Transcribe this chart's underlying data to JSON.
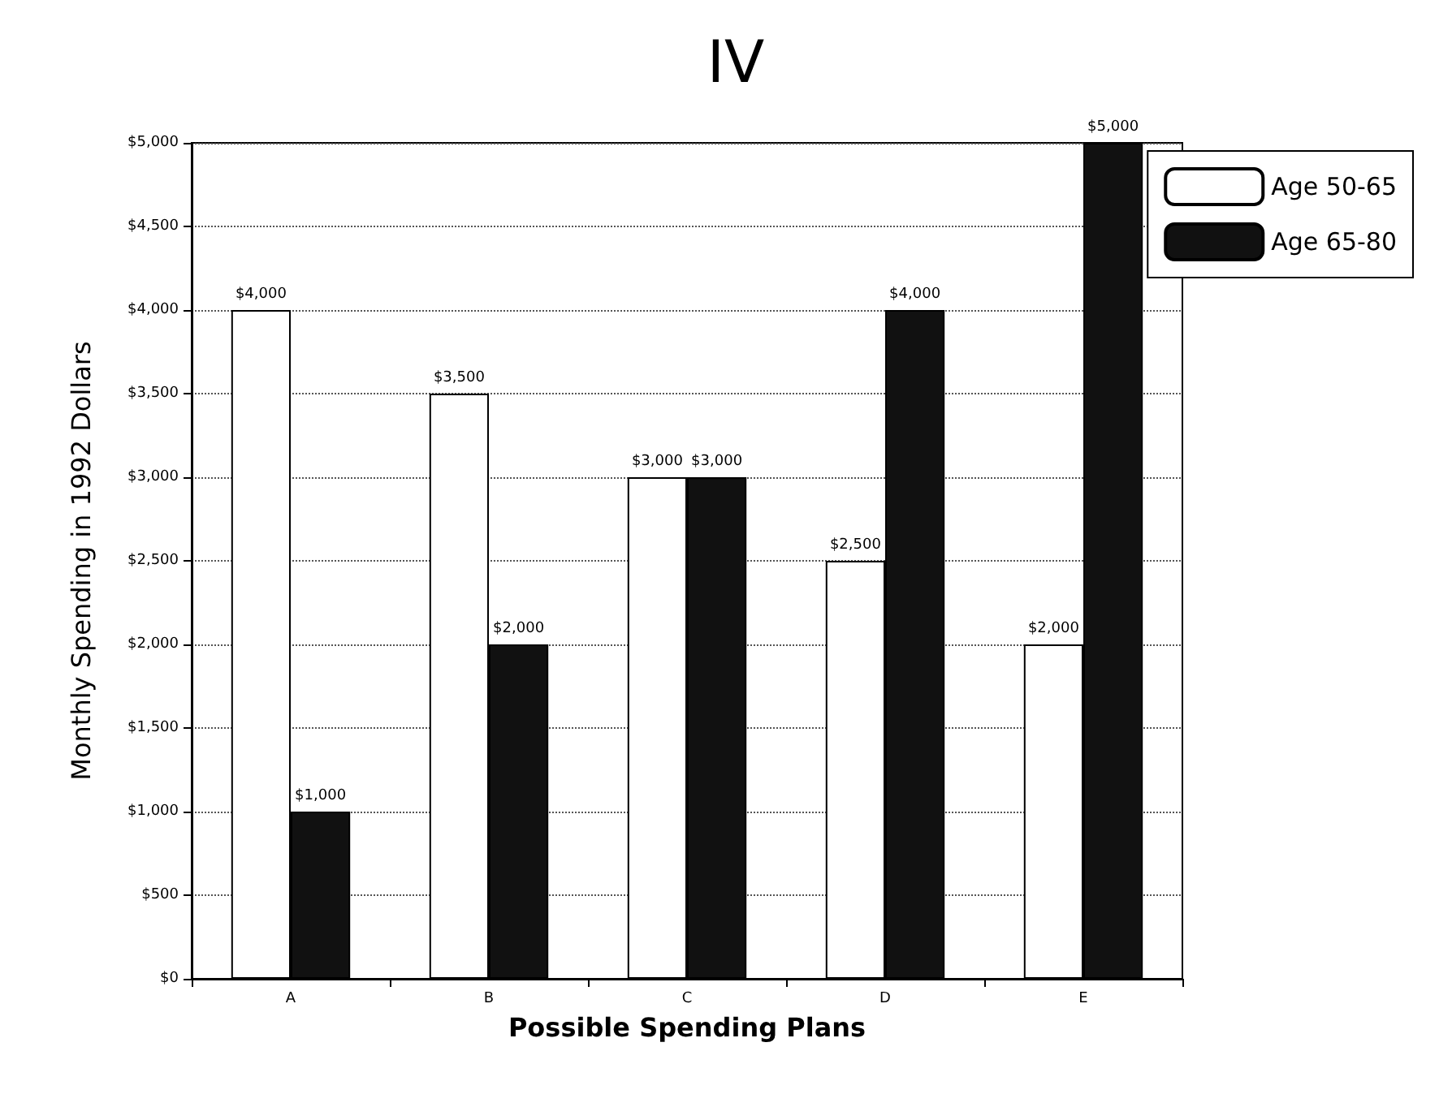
{
  "chart_data": {
    "type": "bar",
    "title": "IV",
    "xlabel": "Possible Spending Plans",
    "ylabel": "Monthly Spending in 1992 Dollars",
    "categories": [
      "A",
      "B",
      "C",
      "D",
      "E"
    ],
    "series": [
      {
        "name": "Age 50-65",
        "color": "#ffffff",
        "values": [
          4000,
          3500,
          3000,
          2500,
          2000
        ],
        "value_labels": [
          "$4,000",
          "$3,500",
          "$3,000",
          "$2,500",
          "$2,000"
        ]
      },
      {
        "name": "Age 65-80",
        "color": "#111111",
        "values": [
          1000,
          2000,
          3000,
          4000,
          5000
        ],
        "value_labels": [
          "$1,000",
          "$2,000",
          "$3,000",
          "$4,000",
          "$5,000"
        ]
      }
    ],
    "ylim": [
      0,
      5000
    ],
    "yticks": [
      {
        "value": 0,
        "label": "$0"
      },
      {
        "value": 500,
        "label": "$500"
      },
      {
        "value": 1000,
        "label": "$1,000"
      },
      {
        "value": 1500,
        "label": "$1,500"
      },
      {
        "value": 2000,
        "label": "$2,000"
      },
      {
        "value": 2500,
        "label": "$2,500"
      },
      {
        "value": 3000,
        "label": "$3,000"
      },
      {
        "value": 3500,
        "label": "$3,500"
      },
      {
        "value": 4000,
        "label": "$4,000"
      },
      {
        "value": 4500,
        "label": "$4,500"
      },
      {
        "value": 5000,
        "label": "$5,000"
      }
    ],
    "grid": "y",
    "legend": "top right"
  }
}
